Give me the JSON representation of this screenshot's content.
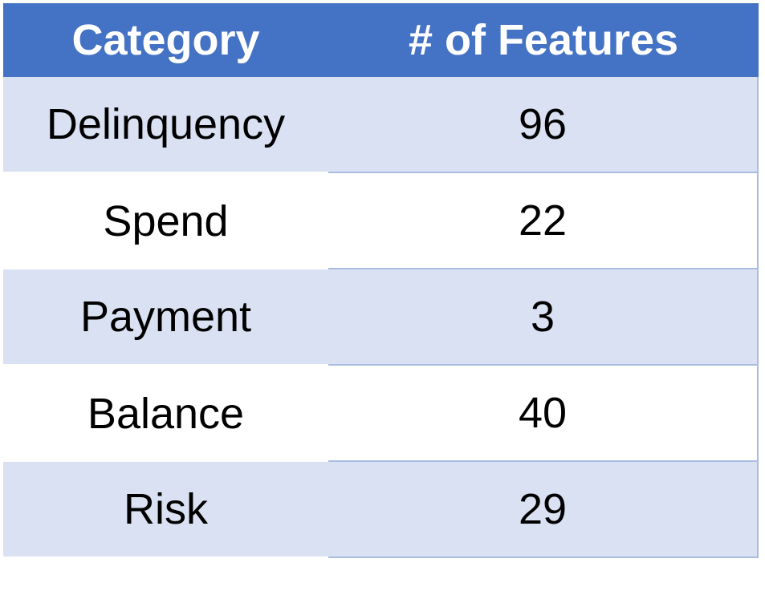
{
  "chart_data": {
    "type": "table",
    "columns": [
      "Category",
      "# of Features"
    ],
    "rows": [
      {
        "category": "Delinquency",
        "features": "96"
      },
      {
        "category": "Spend",
        "features": "22"
      },
      {
        "category": "Payment",
        "features": "3"
      },
      {
        "category": "Balance",
        "features": "40"
      },
      {
        "category": "Risk",
        "features": "29"
      }
    ]
  },
  "colors": {
    "header_bg": "#4472c4",
    "header_text": "#ffffff",
    "band_bg": "#d9e1f2",
    "plain_bg": "#ffffff",
    "rule": "#a9bde0"
  }
}
